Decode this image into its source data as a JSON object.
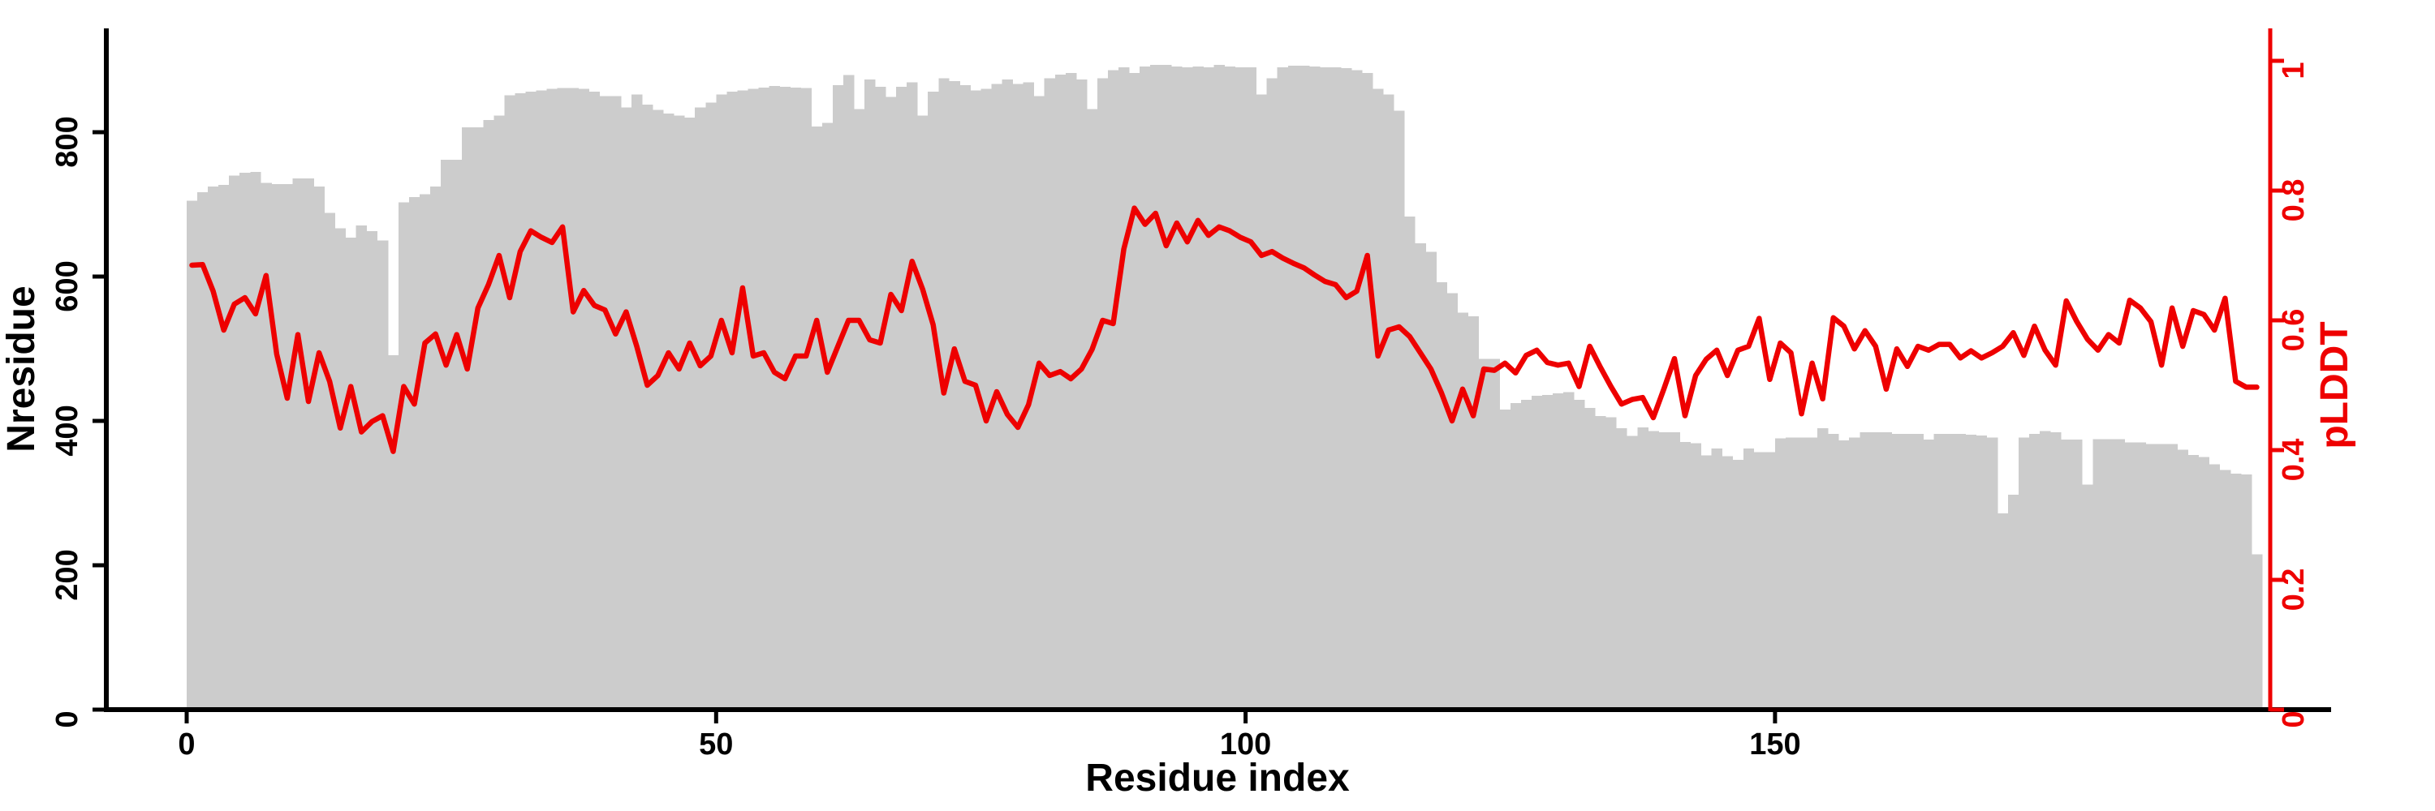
{
  "figure": {
    "background_color": "#ffffff",
    "bar_color": "#cccccc",
    "line_color": "#ee0000",
    "axis_color": "#000000",
    "right_axis_color": "#ee0000"
  },
  "chart_data": {
    "type": "combo",
    "title": "",
    "xlabel": "Residue index",
    "x": {
      "start": 0,
      "step": 1,
      "count": 196
    },
    "x_ticks": [
      "0",
      "50",
      "100",
      "150"
    ],
    "x_tick_values": [
      0,
      50,
      100,
      150
    ],
    "left_axis": {
      "label": "Nresidue",
      "ticks": [
        "0",
        "200",
        "400",
        "600",
        "800"
      ],
      "tick_values": [
        0,
        200,
        400,
        600,
        800
      ],
      "ylim": [
        0,
        944
      ],
      "color": "#000000"
    },
    "right_axis": {
      "label": "pLDDT",
      "ticks": [
        "0",
        "0.2",
        "0.4",
        "0.6",
        "0.8",
        "1"
      ],
      "tick_values": [
        0,
        0.2,
        0.4,
        0.6,
        0.8,
        1
      ],
      "ylim": [
        0,
        1.05
      ],
      "color": "#ee0000"
    },
    "grid": false,
    "legend": "none",
    "series": [
      {
        "name": "Nresidue",
        "type": "bar",
        "axis": "left",
        "color": "#cccccc",
        "values": [
          705,
          717,
          725,
          727,
          740,
          744,
          745,
          730,
          728,
          728,
          736,
          736,
          725,
          688,
          667,
          654,
          671,
          663,
          650,
          491,
          703,
          710,
          714,
          725,
          762,
          762,
          807,
          807,
          817,
          823,
          851,
          854,
          856,
          858,
          860,
          861,
          861,
          860,
          856,
          850,
          850,
          834,
          852,
          838,
          831,
          826,
          823,
          820,
          834,
          841,
          852,
          856,
          858,
          860,
          862,
          864,
          863,
          862,
          861,
          808,
          813,
          865,
          879,
          832,
          873,
          863,
          849,
          863,
          869,
          823,
          856,
          875,
          871,
          865,
          858,
          860,
          867,
          873,
          867,
          869,
          850,
          875,
          880,
          882,
          873,
          832,
          875,
          886,
          890,
          882,
          891,
          893,
          893,
          891,
          890,
          891,
          890,
          893,
          891,
          890,
          890,
          852,
          875,
          890,
          892,
          892,
          891,
          890,
          890,
          889,
          886,
          882,
          860,
          852,
          830,
          683,
          646,
          634,
          592,
          577,
          550,
          545,
          486,
          486,
          416,
          425,
          429,
          435,
          436,
          438,
          440,
          429,
          418,
          407,
          405,
          390,
          379,
          391,
          386,
          384,
          384,
          371,
          369,
          352,
          362,
          351,
          346,
          362,
          357,
          357,
          376,
          377,
          377,
          377,
          390,
          382,
          373,
          377,
          384,
          384,
          384,
          382,
          382,
          382,
          374,
          382,
          382,
          382,
          381,
          380,
          377,
          272,
          298,
          377,
          382,
          386,
          384,
          374,
          374,
          312,
          375,
          375,
          375,
          370,
          370,
          368,
          368,
          368,
          360,
          353,
          350,
          340,
          332,
          327,
          326,
          215
        ]
      },
      {
        "name": "pLDDT",
        "type": "line",
        "axis": "right",
        "color": "#ee0000",
        "values": [
          0.685,
          0.686,
          0.645,
          0.585,
          0.625,
          0.635,
          0.61,
          0.669,
          0.548,
          0.48,
          0.578,
          0.475,
          0.55,
          0.506,
          0.434,
          0.498,
          0.428,
          0.444,
          0.453,
          0.398,
          0.498,
          0.471,
          0.565,
          0.579,
          0.531,
          0.578,
          0.525,
          0.619,
          0.655,
          0.7,
          0.635,
          0.706,
          0.738,
          0.728,
          0.72,
          0.744,
          0.613,
          0.646,
          0.623,
          0.616,
          0.579,
          0.613,
          0.56,
          0.5,
          0.515,
          0.55,
          0.525,
          0.565,
          0.53,
          0.545,
          0.6,
          0.55,
          0.65,
          0.545,
          0.55,
          0.52,
          0.51,
          0.545,
          0.545,
          0.6,
          0.52,
          0.56,
          0.6,
          0.6,
          0.57,
          0.565,
          0.64,
          0.615,
          0.691,
          0.648,
          0.593,
          0.488,
          0.556,
          0.506,
          0.5,
          0.445,
          0.49,
          0.455,
          0.435,
          0.47,
          0.534,
          0.515,
          0.521,
          0.51,
          0.525,
          0.555,
          0.6,
          0.595,
          0.71,
          0.773,
          0.748,
          0.765,
          0.715,
          0.75,
          0.721,
          0.754,
          0.731,
          0.744,
          0.738,
          0.728,
          0.721,
          0.7,
          0.706,
          0.696,
          0.688,
          0.681,
          0.67,
          0.66,
          0.655,
          0.635,
          0.645,
          0.7,
          0.545,
          0.585,
          0.59,
          0.575,
          0.55,
          0.525,
          0.488,
          0.445,
          0.494,
          0.453,
          0.525,
          0.523,
          0.534,
          0.519,
          0.546,
          0.554,
          0.535,
          0.531,
          0.534,
          0.498,
          0.56,
          0.528,
          0.498,
          0.471,
          0.478,
          0.481,
          0.45,
          0.494,
          0.541,
          0.453,
          0.515,
          0.54,
          0.554,
          0.515,
          0.554,
          0.56,
          0.603,
          0.509,
          0.565,
          0.55,
          0.456,
          0.534,
          0.479,
          0.604,
          0.591,
          0.556,
          0.584,
          0.56,
          0.494,
          0.556,
          0.529,
          0.56,
          0.554,
          0.563,
          0.563,
          0.542,
          0.553,
          0.542,
          0.55,
          0.56,
          0.581,
          0.546,
          0.591,
          0.554,
          0.531,
          0.63,
          0.598,
          0.571,
          0.554,
          0.578,
          0.565,
          0.631,
          0.619,
          0.598,
          0.531,
          0.619,
          0.56,
          0.615,
          0.609,
          0.585,
          0.634,
          0.506,
          0.497,
          0.497
        ]
      }
    ]
  }
}
